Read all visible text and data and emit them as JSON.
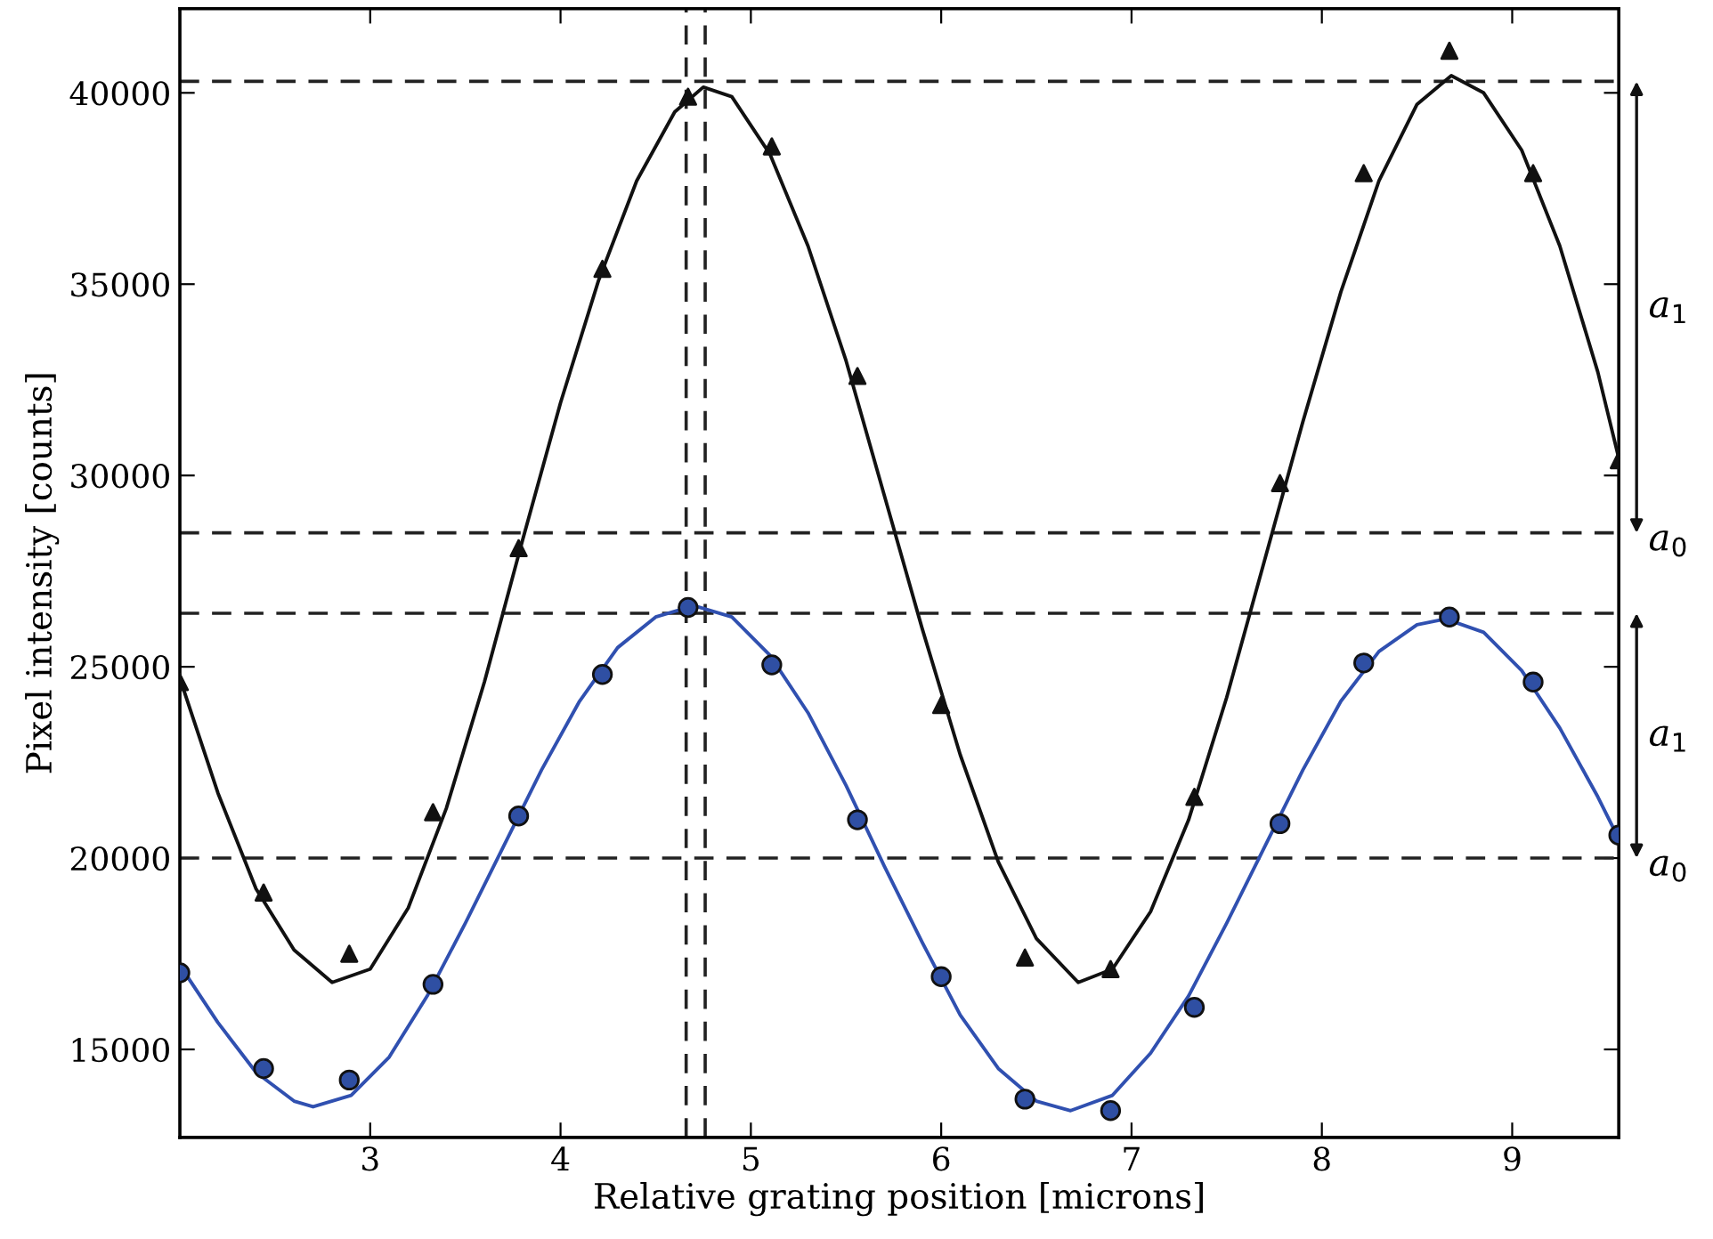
{
  "chart_data": {
    "type": "scatter",
    "xlabel": "Relative grating position [microns]",
    "ylabel": "Pixel intensity [counts]",
    "xlim": [
      2,
      9.56
    ],
    "ylim": [
      12700,
      42200
    ],
    "xticks": [
      3,
      4,
      5,
      6,
      7,
      8,
      9
    ],
    "yticks": [
      15000,
      20000,
      25000,
      30000,
      35000,
      40000
    ],
    "grid": false,
    "legend": false,
    "series": [
      {
        "marker": "triangle",
        "color": "#111111",
        "x": [
          2.0,
          2.44,
          2.89,
          3.33,
          3.78,
          4.22,
          4.67,
          5.11,
          5.56,
          6.0,
          6.44,
          6.89,
          7.33,
          7.78,
          8.22,
          8.67,
          9.11,
          9.56
        ],
        "values": [
          24600,
          19100,
          17500,
          21200,
          28100,
          35400,
          39900,
          38600,
          32600,
          24000,
          17400,
          17100,
          21600,
          29800,
          37900,
          41100,
          37900,
          30400
        ]
      },
      {
        "marker": "circle",
        "color": "#2f4fa3",
        "x": [
          2.0,
          2.44,
          2.89,
          3.33,
          3.78,
          4.22,
          4.67,
          5.11,
          5.56,
          6.0,
          6.44,
          6.89,
          7.33,
          7.78,
          8.22,
          8.67,
          9.11,
          9.56
        ],
        "values": [
          17000,
          14500,
          14200,
          16700,
          21100,
          24800,
          26550,
          25050,
          21000,
          16900,
          13700,
          13400,
          16100,
          20900,
          25100,
          26300,
          24600,
          20600
        ]
      },
      {
        "type": "line",
        "marker": "none",
        "line_style": "solid",
        "color": "#111111",
        "x": [
          2.0,
          2.2,
          2.4,
          2.6,
          2.8,
          3.0,
          3.2,
          3.4,
          3.6,
          3.8,
          4.0,
          4.2,
          4.4,
          4.6,
          4.75,
          4.9,
          5.1,
          5.3,
          5.5,
          5.7,
          5.9,
          6.1,
          6.3,
          6.5,
          6.72,
          6.9,
          7.1,
          7.3,
          7.5,
          7.7,
          7.9,
          8.1,
          8.3,
          8.5,
          8.68,
          8.85,
          9.05,
          9.25,
          9.45,
          9.56
        ],
        "values": [
          24700,
          21700,
          19200,
          17600,
          16750,
          17100,
          18700,
          21300,
          24600,
          28300,
          31900,
          35100,
          37700,
          39500,
          40150,
          39900,
          38400,
          36000,
          33000,
          29500,
          26000,
          22700,
          19900,
          17900,
          16750,
          17100,
          18600,
          21000,
          24200,
          27800,
          31400,
          34800,
          37700,
          39700,
          40450,
          40000,
          38500,
          36000,
          32700,
          30450
        ]
      },
      {
        "type": "line",
        "marker": "none",
        "line_style": "solid",
        "color": "#3050b0",
        "x": [
          2.0,
          2.2,
          2.4,
          2.6,
          2.7,
          2.9,
          3.1,
          3.3,
          3.5,
          3.7,
          3.9,
          4.1,
          4.3,
          4.5,
          4.7,
          4.9,
          5.1,
          5.3,
          5.5,
          5.7,
          5.9,
          6.1,
          6.3,
          6.5,
          6.68,
          6.9,
          7.1,
          7.3,
          7.5,
          7.7,
          7.9,
          8.1,
          8.3,
          8.5,
          8.65,
          8.85,
          9.05,
          9.25,
          9.45,
          9.56
        ],
        "values": [
          17200,
          15700,
          14400,
          13650,
          13500,
          13800,
          14800,
          16400,
          18300,
          20300,
          22300,
          24100,
          25500,
          26300,
          26600,
          26300,
          25300,
          23800,
          21900,
          19800,
          17800,
          15900,
          14500,
          13650,
          13400,
          13800,
          14900,
          16400,
          18300,
          20300,
          22300,
          24100,
          25400,
          26100,
          26250,
          25900,
          24900,
          23400,
          21600,
          20500
        ]
      }
    ],
    "ref_lines": [
      {
        "axis": "y",
        "value": 40300,
        "line_style": "dashed",
        "color": "#222222"
      },
      {
        "axis": "y",
        "value": 28500,
        "line_style": "dashed",
        "color": "#222222"
      },
      {
        "axis": "y",
        "value": 26400,
        "line_style": "dashed",
        "color": "#222222"
      },
      {
        "axis": "y",
        "value": 20000,
        "line_style": "dashed",
        "color": "#222222"
      },
      {
        "axis": "x",
        "value": 4.66,
        "line_style": "dashed",
        "color": "#222222"
      },
      {
        "axis": "x",
        "value": 4.76,
        "line_style": "dashed",
        "color": "#222222"
      }
    ],
    "annotations": [
      "a$_{1}$",
      {
        "text": "a$_{0}$",
        "x": 9.56,
        "y": 28500
      },
      "a$_{1}$",
      {
        "text": "a$_{0}$",
        "x": 9.56,
        "y": 20000
      }
    ]
  }
}
